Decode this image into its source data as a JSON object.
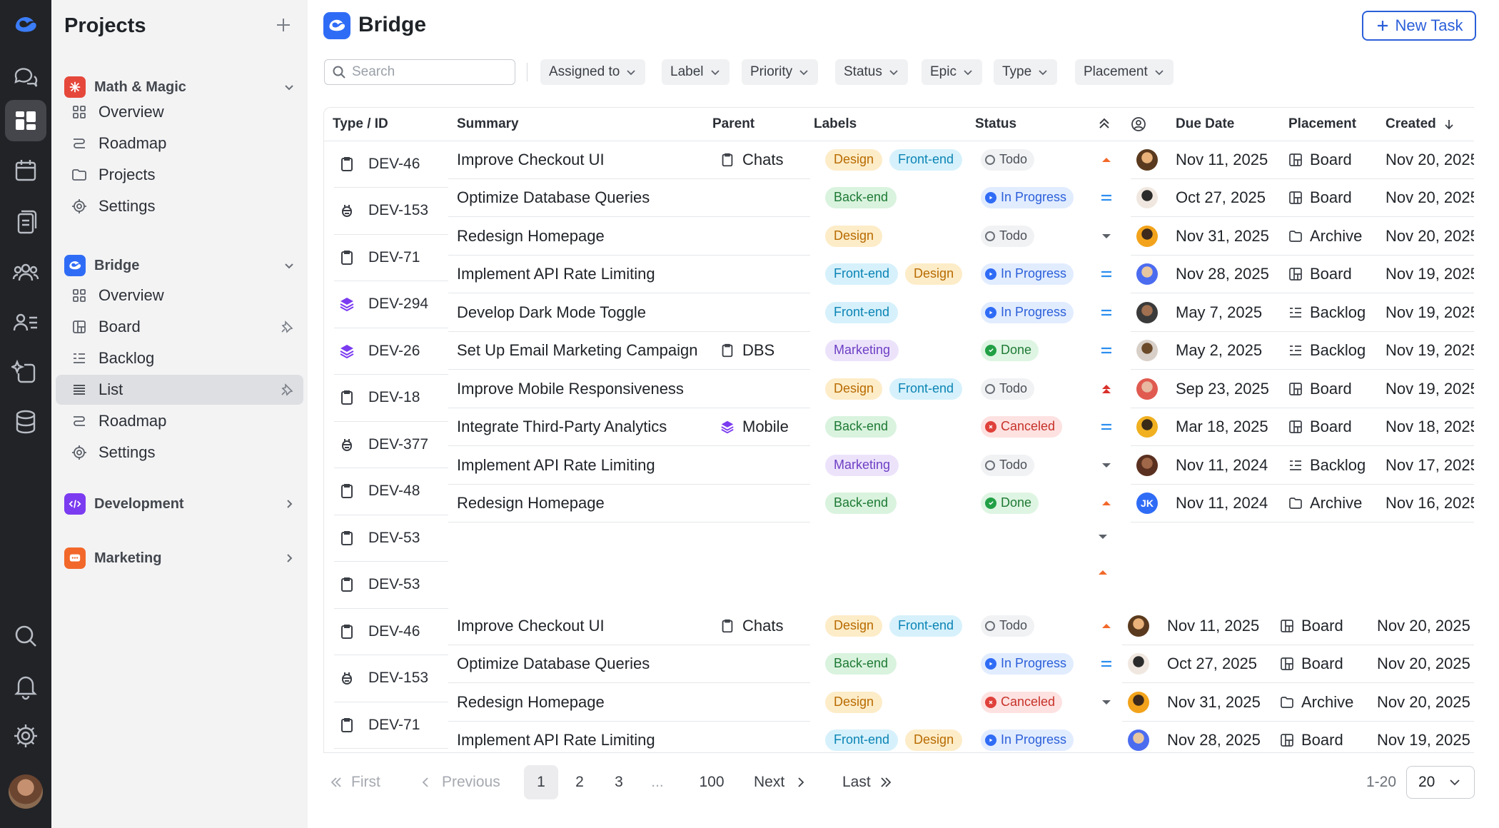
{
  "sidebar": {
    "title": "Projects",
    "groups": [
      {
        "name": "Math & Magic",
        "color": "#e5483b",
        "items": [
          "Overview",
          "Roadmap",
          "Projects",
          "Settings"
        ]
      },
      {
        "name": "Bridge",
        "color": "#2f6cf6",
        "items": [
          "Overview",
          "Board",
          "Backlog",
          "List",
          "Roadmap",
          "Settings"
        ],
        "active_item": "List"
      },
      {
        "name": "Development",
        "color": "#7b3bf0"
      },
      {
        "name": "Marketing",
        "color": "#f2682a"
      }
    ]
  },
  "header": {
    "title": "Bridge",
    "new_task_label": "New Task"
  },
  "filters": {
    "search_placeholder": "Search",
    "buttons": [
      "Assigned to",
      "Label",
      "Priority",
      "Status",
      "Epic",
      "Type",
      "Placement"
    ]
  },
  "table": {
    "columns": [
      "Type / ID",
      "Summary",
      "Parent",
      "Labels",
      "Status",
      "",
      "",
      "Due Date",
      "Placement",
      "Created"
    ],
    "rows": [
      {
        "type": "task",
        "id": "DEV-46",
        "summary": "Improve Checkout UI",
        "parent": "Chats",
        "parent_icon": "task",
        "labels": [
          "Design",
          "Front-end"
        ],
        "status": "Todo",
        "priority": "medium-up",
        "avatar": "a1",
        "due": "Nov 11, 2025",
        "placement": "Board",
        "created": "Nov 20, 2025"
      },
      {
        "type": "bug",
        "id": "DEV-153",
        "summary": "Optimize Database Queries",
        "parent": "",
        "labels": [
          "Back-end"
        ],
        "status": "In Progress",
        "priority": "equal",
        "avatar": "a2",
        "due": "Oct 27, 2025",
        "placement": "Board",
        "created": "Nov 20, 2025"
      },
      {
        "type": "task",
        "id": "DEV-71",
        "summary": "Redesign Homepage",
        "parent": "",
        "labels": [
          "Design"
        ],
        "status": "Todo",
        "priority": "low",
        "avatar": "a3",
        "due": "Nov 31, 2025",
        "placement": "Archive",
        "created": "Nov 20, 2025"
      },
      {
        "type": "epic",
        "id": "DEV-294",
        "summary": "Implement API Rate Limiting",
        "parent": "",
        "labels": [
          "Front-end",
          "Design"
        ],
        "status": "In Progress",
        "priority": "equal",
        "avatar": "a4",
        "due": "Nov 28, 2025",
        "placement": "Board",
        "created": "Nov 19, 2025"
      },
      {
        "type": "epic",
        "id": "DEV-26",
        "summary": "Develop Dark Mode Toggle",
        "parent": "",
        "labels": [
          "Front-end"
        ],
        "status": "In Progress",
        "priority": "equal",
        "avatar": "a5",
        "due": "May 7, 2025",
        "placement": "Backlog",
        "created": "Nov 19, 2025"
      },
      {
        "type": "task",
        "id": "DEV-18",
        "summary": "Set Up Email Marketing Campaign",
        "parent": "DBS",
        "parent_icon": "task",
        "labels": [
          "Marketing"
        ],
        "status": "Done",
        "priority": "equal",
        "avatar": "a6",
        "due": "May 2, 2025",
        "placement": "Backlog",
        "created": "Nov 19, 2025"
      },
      {
        "type": "bug",
        "id": "DEV-377",
        "summary": "Improve Mobile Responsiveness",
        "parent": "",
        "labels": [
          "Design",
          "Front-end"
        ],
        "status": "Todo",
        "priority": "high",
        "avatar": "a7",
        "due": "Sep 23, 2025",
        "placement": "Board",
        "created": "Nov 19, 2025"
      },
      {
        "type": "task",
        "id": "DEV-48",
        "summary": "Integrate Third-Party Analytics",
        "parent": "Mobile",
        "parent_icon": "epic",
        "labels": [
          "Back-end"
        ],
        "status": "Canceled",
        "priority": "equal",
        "avatar": "a8",
        "due": "Mar 18, 2025",
        "placement": "Board",
        "created": "Nov 18, 2025"
      },
      {
        "type": "task",
        "id": "DEV-53",
        "summary": "Implement API Rate Limiting",
        "parent": "",
        "labels": [
          "Marketing"
        ],
        "status": "Todo",
        "priority": "low",
        "avatar": "a9",
        "due": "Nov 11, 2024",
        "placement": "Backlog",
        "created": "Nov 17, 2025"
      },
      {
        "type": "task",
        "id": "DEV-53",
        "summary": "Redesign Homepage",
        "parent": "",
        "labels": [
          "Back-end"
        ],
        "status": "Done",
        "priority": "medium-up",
        "avatar": "JK",
        "due": "Nov 11, 2024",
        "placement": "Archive",
        "created": "Nov 16, 2025"
      },
      {
        "type": "task",
        "id": "DEV-46",
        "summary": "Improve Checkout UI",
        "parent": "Chats",
        "parent_icon": "task",
        "labels": [
          "Design",
          "Front-end"
        ],
        "status": "Todo",
        "priority": "medium-up",
        "avatar": "a1",
        "due": "Nov 11, 2025",
        "placement": "Board",
        "created": "Nov 20, 2025"
      },
      {
        "type": "bug",
        "id": "DEV-153",
        "summary": "Optimize Database Queries",
        "parent": "",
        "labels": [
          "Back-end"
        ],
        "status": "In Progress",
        "priority": "equal",
        "avatar": "a2",
        "due": "Oct 27, 2025",
        "placement": "Board",
        "created": "Nov 20, 2025"
      },
      {
        "type": "task",
        "id": "DEV-71",
        "summary": "Redesign Homepage",
        "parent": "",
        "labels": [
          "Design"
        ],
        "status": "Canceled",
        "priority": "low",
        "avatar": "a3",
        "due": "Nov 31, 2025",
        "placement": "Archive",
        "created": "Nov 20, 2025"
      },
      {
        "type": "task",
        "id": "",
        "summary": "Implement API Rate Limiting",
        "parent": "",
        "labels": [
          "Front-end",
          "Design"
        ],
        "status": "In Progress",
        "priority": "",
        "avatar": "a4",
        "due": "Nov 28, 2025",
        "placement": "Board",
        "created": "Nov 19, 2025"
      }
    ]
  },
  "pagination": {
    "first": "First",
    "previous": "Previous",
    "pages": [
      "1",
      "2",
      "3",
      "...",
      "100"
    ],
    "current": "1",
    "next": "Next",
    "last": "Last",
    "range": "1-20",
    "page_size": "20"
  }
}
